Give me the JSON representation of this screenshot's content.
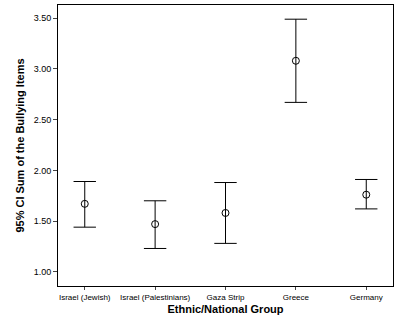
{
  "chart_data": {
    "type": "scatter",
    "x_label": "Ethnic/National Group",
    "y_label": "95% CI Sum of the Bullying Items",
    "categories": [
      "Israel (Jewish)",
      "Israel (Palestinians)",
      "Gaza Strip",
      "Greece",
      "Germany"
    ],
    "values": [
      1.67,
      1.47,
      1.58,
      3.08,
      1.76
    ],
    "lower": [
      1.44,
      1.23,
      1.28,
      2.67,
      1.62
    ],
    "upper": [
      1.89,
      1.7,
      1.88,
      3.49,
      1.91
    ],
    "color": "#000000",
    "marker": "circle-open",
    "ylim": [
      0.86,
      3.63
    ],
    "yticks": [
      {
        "value": 1,
        "label": "1.00"
      },
      {
        "value": 1.5,
        "label": "1.50"
      },
      {
        "value": 2,
        "label": "2.00"
      },
      {
        "value": 2.5,
        "label": "2.50"
      },
      {
        "value": 3,
        "label": "3.00"
      },
      {
        "value": 3.5,
        "label": "3.50"
      }
    ],
    "grid": false
  }
}
